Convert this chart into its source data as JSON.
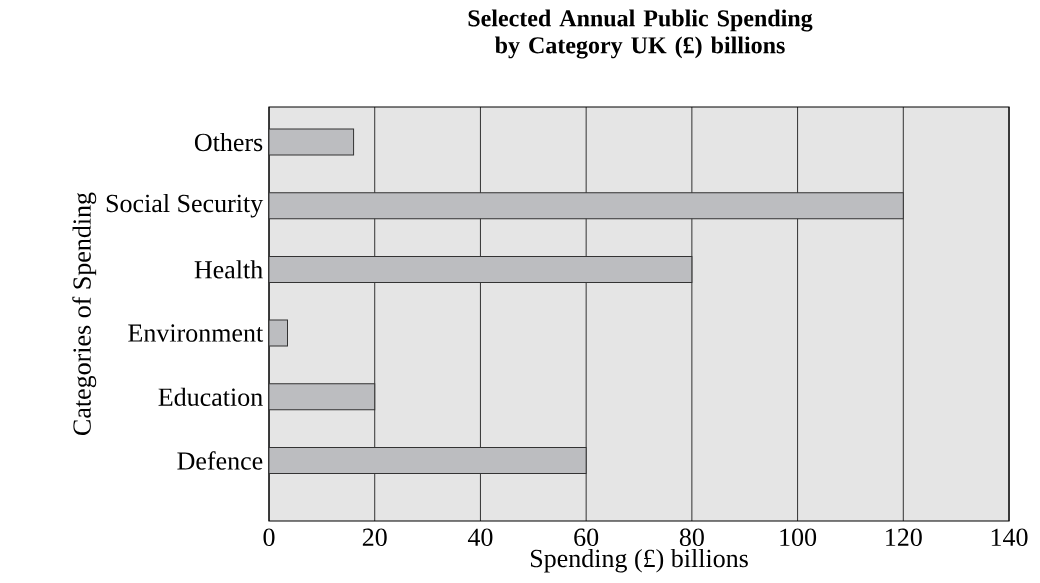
{
  "chart_data": {
    "type": "bar",
    "orientation": "horizontal",
    "title": "Selected Annual Public Spending by Category UK (£) billions",
    "xlabel": "Spending (£) billions",
    "ylabel": "Categories of Spending",
    "categories": [
      "Others",
      "Social Security",
      "Health",
      "Environment",
      "Education",
      "Defence"
    ],
    "values": [
      16,
      120,
      80,
      3.5,
      20,
      60
    ],
    "color": "#bcbdc0",
    "xlim": [
      0,
      140
    ],
    "xticks": [
      0,
      20,
      40,
      60,
      80,
      100,
      120,
      140
    ],
    "grid": "x"
  }
}
